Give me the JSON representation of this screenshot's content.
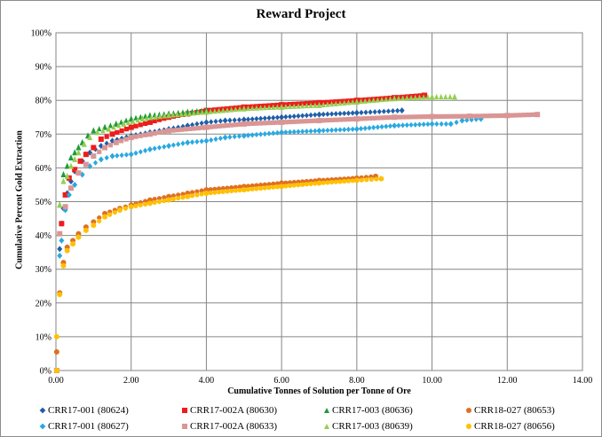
{
  "chart_data": {
    "type": "scatter",
    "title": "Reward Project",
    "xlabel": "Cumulative Tonnes of Solution per Tonne of Ore",
    "ylabel": "Cumulative Percent Gold Extraction",
    "xlim": [
      0,
      14
    ],
    "ylim": [
      0,
      100
    ],
    "xticks": [
      "0.00",
      "2.00",
      "4.00",
      "6.00",
      "8.00",
      "10.00",
      "12.00",
      "14.00"
    ],
    "yticks": [
      "0%",
      "10%",
      "20%",
      "30%",
      "40%",
      "50%",
      "60%",
      "70%",
      "80%",
      "90%",
      "100%"
    ],
    "grid": true,
    "legend_position": "bottom",
    "series": [
      {
        "name": "CRR17-001 (80624)",
        "color": "#1f5fa8",
        "marker": "diamond",
        "points": [
          [
            0.1,
            36
          ],
          [
            0.15,
            43.5
          ],
          [
            0.2,
            48
          ],
          [
            0.3,
            52.5
          ],
          [
            0.4,
            56
          ],
          [
            0.5,
            59
          ],
          [
            0.7,
            62
          ],
          [
            0.9,
            64.5
          ],
          [
            1.2,
            66.5
          ],
          [
            1.5,
            68
          ],
          [
            2,
            69.5
          ],
          [
            2.5,
            70.5
          ],
          [
            3,
            71.5
          ],
          [
            3.5,
            72.5
          ],
          [
            4,
            73.5
          ],
          [
            4.5,
            74
          ],
          [
            5,
            74.3
          ],
          [
            6,
            75
          ],
          [
            7,
            75.8
          ],
          [
            8,
            76.3
          ],
          [
            9.2,
            77
          ]
        ]
      },
      {
        "name": "CRR17-002A (80630)",
        "color": "#ee1c1c",
        "marker": "square",
        "points": [
          [
            0.15,
            43.5
          ],
          [
            0.25,
            52
          ],
          [
            0.35,
            57
          ],
          [
            0.5,
            59.5
          ],
          [
            0.65,
            62
          ],
          [
            0.8,
            64
          ],
          [
            1,
            66
          ],
          [
            1.2,
            68.5
          ],
          [
            1.5,
            70
          ],
          [
            2,
            72
          ],
          [
            2.5,
            73.5
          ],
          [
            3,
            75
          ],
          [
            3.5,
            76
          ],
          [
            4,
            77
          ],
          [
            5,
            78
          ],
          [
            6,
            78.7
          ],
          [
            7,
            79.3
          ],
          [
            8,
            80
          ],
          [
            9,
            80.8
          ],
          [
            9.8,
            81.5
          ]
        ]
      },
      {
        "name": "CRR17-003 (80636)",
        "color": "#1e9a3c",
        "marker": "triangle",
        "points": [
          [
            0.1,
            49
          ],
          [
            0.2,
            58
          ],
          [
            0.3,
            60.5
          ],
          [
            0.4,
            63
          ],
          [
            0.5,
            64.5
          ],
          [
            0.6,
            66
          ],
          [
            0.7,
            67.5
          ],
          [
            0.85,
            69.5
          ],
          [
            1,
            71
          ],
          [
            1.3,
            72
          ],
          [
            1.6,
            73
          ],
          [
            2,
            74.5
          ],
          [
            2.5,
            75.5
          ],
          [
            3,
            76
          ],
          [
            3.5,
            76.5
          ],
          [
            4,
            77
          ]
        ]
      },
      {
        "name": "CRR18-027 (80653)",
        "color": "#e07020",
        "marker": "circle",
        "points": [
          [
            0.02,
            5.5
          ],
          [
            0.1,
            23
          ],
          [
            0.2,
            32
          ],
          [
            0.3,
            36.5
          ],
          [
            0.45,
            38.5
          ],
          [
            0.6,
            40.5
          ],
          [
            0.8,
            42.5
          ],
          [
            1,
            44
          ],
          [
            1.3,
            46.5
          ],
          [
            1.7,
            48
          ],
          [
            2,
            49
          ],
          [
            2.5,
            50.5
          ],
          [
            3,
            51.5
          ],
          [
            3.5,
            52.5
          ],
          [
            4,
            53.5
          ],
          [
            5,
            54.5
          ],
          [
            6,
            55.5
          ],
          [
            7,
            56.3
          ],
          [
            8,
            57
          ],
          [
            8.5,
            57.5
          ]
        ]
      },
      {
        "name": "CRR17-001 (80627)",
        "color": "#29a9e1",
        "marker": "diamond",
        "points": [
          [
            0.1,
            34
          ],
          [
            0.15,
            38.5
          ],
          [
            0.25,
            47.5
          ],
          [
            0.35,
            52
          ],
          [
            0.5,
            55
          ],
          [
            0.7,
            58
          ],
          [
            0.9,
            60.5
          ],
          [
            1.2,
            62.5
          ],
          [
            1.5,
            63.5
          ],
          [
            2,
            64
          ],
          [
            2.5,
            65.5
          ],
          [
            3,
            66.5
          ],
          [
            3.5,
            67.5
          ],
          [
            4,
            68
          ],
          [
            4.5,
            69
          ],
          [
            5,
            69.5
          ],
          [
            6,
            70.5
          ],
          [
            7,
            71
          ],
          [
            8,
            71.5
          ],
          [
            9,
            72.5
          ],
          [
            10,
            73
          ],
          [
            10.5,
            73
          ],
          [
            10.8,
            74
          ],
          [
            11.3,
            74.5
          ]
        ]
      },
      {
        "name": "CRR17-002A (80633)",
        "color": "#d99694",
        "marker": "square",
        "points": [
          [
            0.02,
            0
          ],
          [
            0.1,
            40.5
          ],
          [
            0.25,
            48.5
          ],
          [
            0.4,
            54
          ],
          [
            0.6,
            58.5
          ],
          [
            0.8,
            61
          ],
          [
            1,
            63.5
          ],
          [
            1.3,
            66
          ],
          [
            1.6,
            67.5
          ],
          [
            2,
            69
          ],
          [
            2.5,
            70
          ],
          [
            3,
            71
          ],
          [
            4,
            72
          ],
          [
            5,
            73
          ],
          [
            6,
            73.5
          ],
          [
            7,
            74
          ],
          [
            8,
            74.5
          ],
          [
            9,
            75
          ],
          [
            10,
            75.2
          ],
          [
            11,
            75.3
          ],
          [
            12,
            75.5
          ],
          [
            12.8,
            75.8
          ]
        ]
      },
      {
        "name": "CRR17-003 (80639)",
        "color": "#92d050",
        "marker": "triangle",
        "points": [
          [
            0.1,
            49
          ],
          [
            0.2,
            56
          ],
          [
            0.3,
            57.5
          ],
          [
            0.4,
            60.5
          ],
          [
            0.5,
            62.5
          ],
          [
            0.6,
            64.5
          ],
          [
            0.75,
            67
          ],
          [
            0.9,
            69
          ],
          [
            1.1,
            70.5
          ],
          [
            1.4,
            71.5
          ],
          [
            1.8,
            73
          ],
          [
            2.3,
            74.5
          ],
          [
            3,
            75.5
          ],
          [
            4,
            76.5
          ],
          [
            5,
            77.5
          ],
          [
            6,
            78
          ],
          [
            7,
            78.5
          ],
          [
            8,
            79.5
          ],
          [
            9,
            80.5
          ],
          [
            10,
            81
          ],
          [
            10.6,
            81
          ]
        ]
      },
      {
        "name": "CRR18-027 (80656)",
        "color": "#ffc000",
        "marker": "circle",
        "points": [
          [
            0.02,
            0
          ],
          [
            0.02,
            10
          ],
          [
            0.1,
            22.5
          ],
          [
            0.2,
            31
          ],
          [
            0.3,
            35.5
          ],
          [
            0.45,
            37.5
          ],
          [
            0.6,
            39.5
          ],
          [
            0.8,
            41.5
          ],
          [
            1,
            43
          ],
          [
            1.3,
            45.5
          ],
          [
            1.7,
            47.5
          ],
          [
            2,
            48.5
          ],
          [
            2.5,
            49.5
          ],
          [
            3,
            50.5
          ],
          [
            3.5,
            51.5
          ],
          [
            4,
            52.5
          ],
          [
            5,
            53.5
          ],
          [
            6,
            54.5
          ],
          [
            7,
            55.5
          ],
          [
            8,
            56.3
          ],
          [
            8.65,
            56.8
          ]
        ]
      }
    ]
  }
}
